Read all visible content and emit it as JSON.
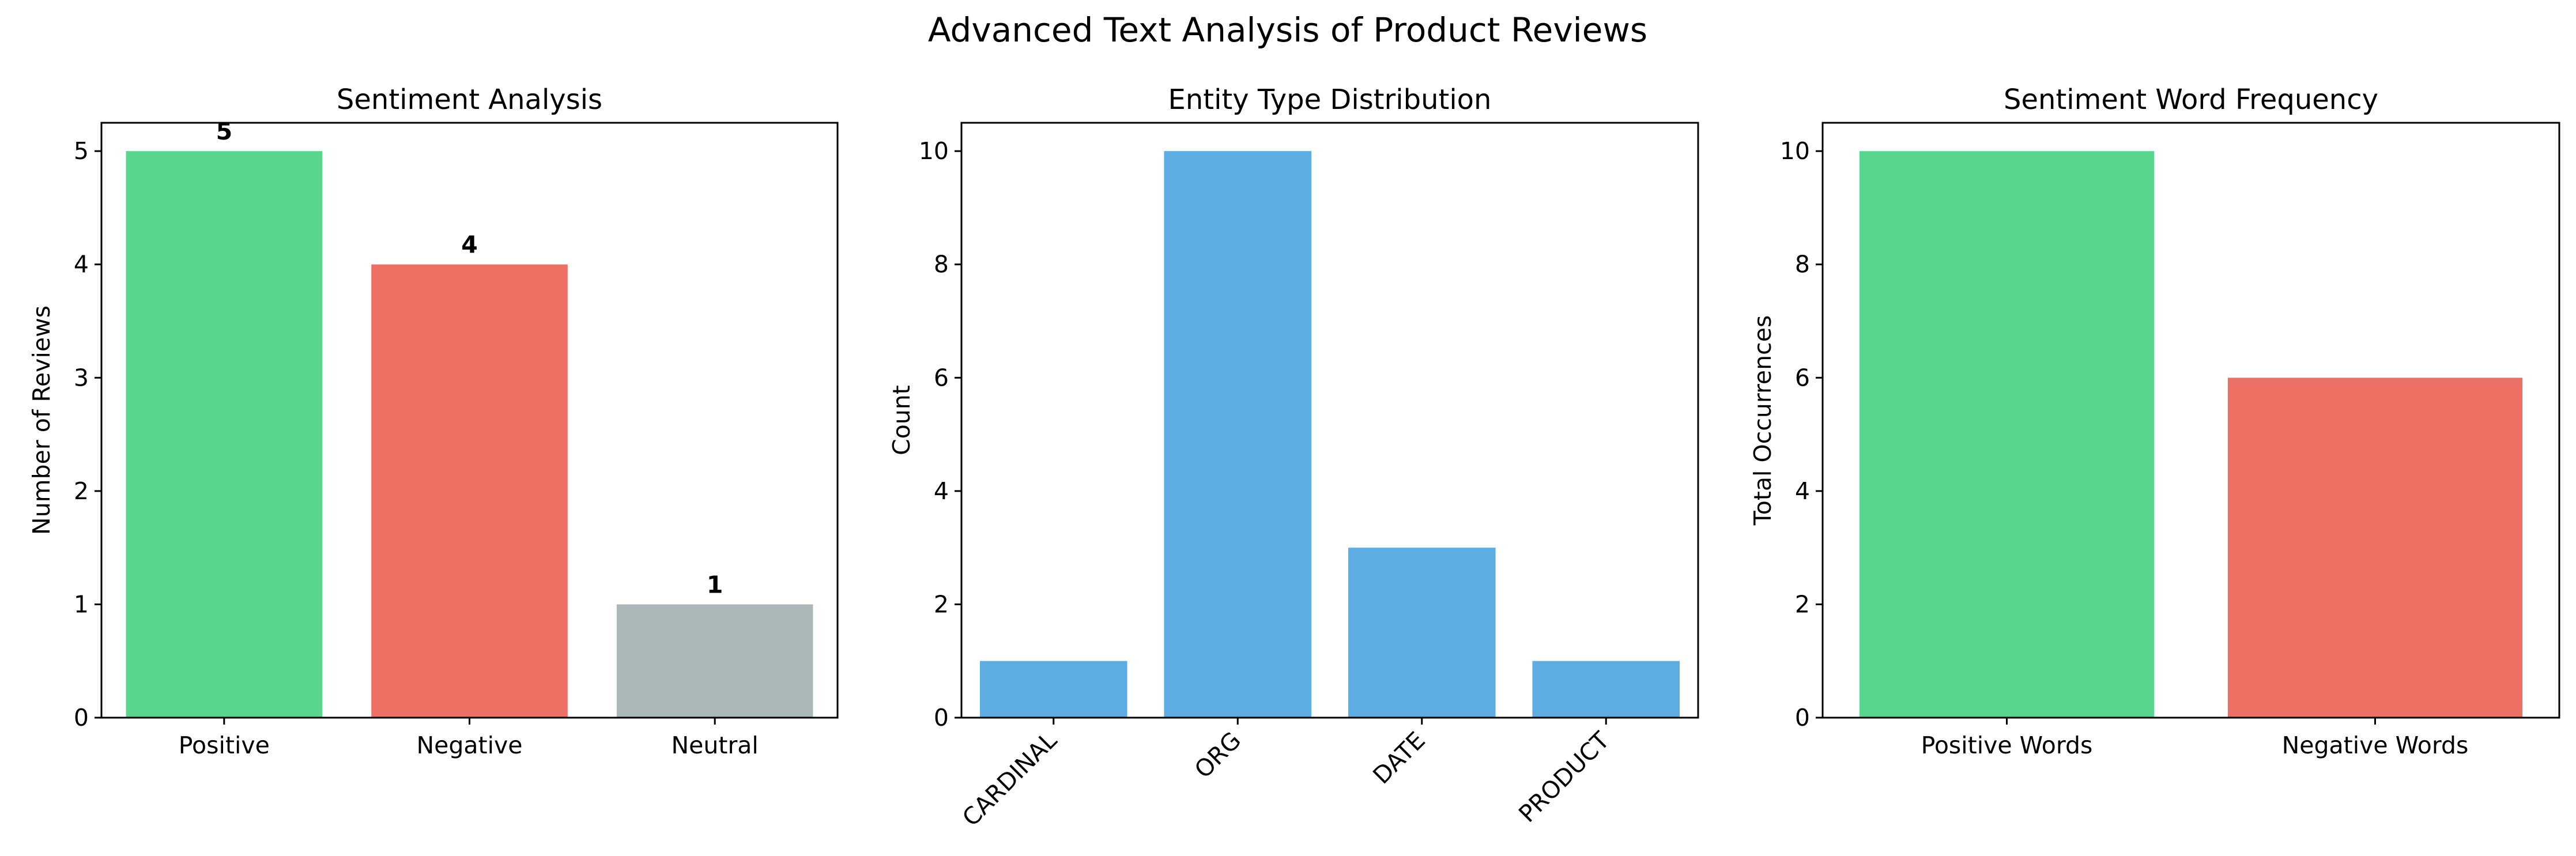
{
  "figure_title": "Advanced Text Analysis of Product Reviews",
  "chart_data": [
    {
      "type": "bar",
      "title": "Sentiment Analysis",
      "xlabel": "",
      "ylabel": "Number of Reviews",
      "categories": [
        "Positive",
        "Negative",
        "Neutral"
      ],
      "values": [
        5,
        4,
        1
      ],
      "colors": [
        "#58d68d",
        "#ec7063",
        "#aab7b8"
      ],
      "ylim": [
        0,
        5.25
      ],
      "yticks": [
        0,
        1,
        2,
        3,
        4,
        5
      ],
      "data_labels": true,
      "rotate_xticks": false,
      "grid": false
    },
    {
      "type": "bar",
      "title": "Entity Type Distribution",
      "xlabel": "",
      "ylabel": "Count",
      "categories": [
        "CARDINAL",
        "ORG",
        "DATE",
        "PRODUCT"
      ],
      "values": [
        1,
        10,
        3,
        1
      ],
      "colors": [
        "#5dade2",
        "#5dade2",
        "#5dade2",
        "#5dade2"
      ],
      "ylim": [
        0,
        10.5
      ],
      "yticks": [
        0,
        2,
        4,
        6,
        8,
        10
      ],
      "data_labels": false,
      "rotate_xticks": true,
      "grid": false
    },
    {
      "type": "bar",
      "title": "Sentiment Word Frequency",
      "xlabel": "",
      "ylabel": "Total Occurrences",
      "categories": [
        "Positive Words",
        "Negative Words"
      ],
      "values": [
        10,
        6
      ],
      "colors": [
        "#58d68d",
        "#ec7063"
      ],
      "ylim": [
        0,
        10.5
      ],
      "yticks": [
        0,
        2,
        4,
        6,
        8,
        10
      ],
      "data_labels": false,
      "rotate_xticks": false,
      "grid": false
    }
  ]
}
